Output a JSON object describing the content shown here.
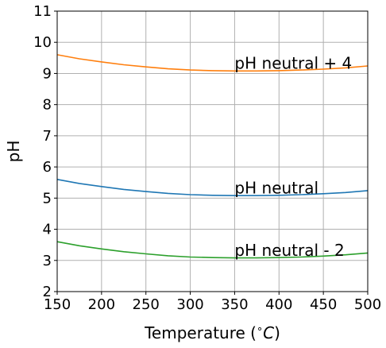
{
  "chart_data": {
    "type": "line",
    "xlabel_text": "Temperature (",
    "xlabel_degree": "∘",
    "xlabel_unit": "C",
    "xlabel_close": ")",
    "ylabel": "pH",
    "xlim": [
      150,
      500
    ],
    "ylim": [
      2,
      11
    ],
    "xticks": [
      150,
      200,
      250,
      300,
      350,
      400,
      450,
      500
    ],
    "yticks": [
      2,
      3,
      4,
      5,
      6,
      7,
      8,
      9,
      10,
      11
    ],
    "grid": true,
    "x": [
      150,
      175,
      200,
      225,
      250,
      275,
      300,
      325,
      350,
      375,
      400,
      425,
      450,
      475,
      500
    ],
    "series": [
      {
        "name": "pH neutral + 4",
        "color": "#ff7f0e",
        "values": [
          9.6,
          9.47,
          9.37,
          9.28,
          9.21,
          9.15,
          9.11,
          9.09,
          9.08,
          9.08,
          9.09,
          9.11,
          9.14,
          9.18,
          9.24
        ]
      },
      {
        "name": "pH neutral",
        "color": "#1f77b4",
        "values": [
          5.6,
          5.47,
          5.37,
          5.28,
          5.21,
          5.15,
          5.11,
          5.09,
          5.08,
          5.08,
          5.09,
          5.11,
          5.14,
          5.18,
          5.24
        ]
      },
      {
        "name": "pH neutral - 2",
        "color": "#2ca02c",
        "values": [
          3.6,
          3.47,
          3.37,
          3.28,
          3.21,
          3.15,
          3.11,
          3.09,
          3.08,
          3.08,
          3.09,
          3.11,
          3.14,
          3.18,
          3.24
        ]
      }
    ],
    "annotations": [
      {
        "text": "pH neutral + 4",
        "x": 350,
        "y": 9.2
      },
      {
        "text": "pH neutral",
        "x": 350,
        "y": 5.2
      },
      {
        "text": "pH neutral - 2",
        "x": 350,
        "y": 3.2
      }
    ]
  }
}
